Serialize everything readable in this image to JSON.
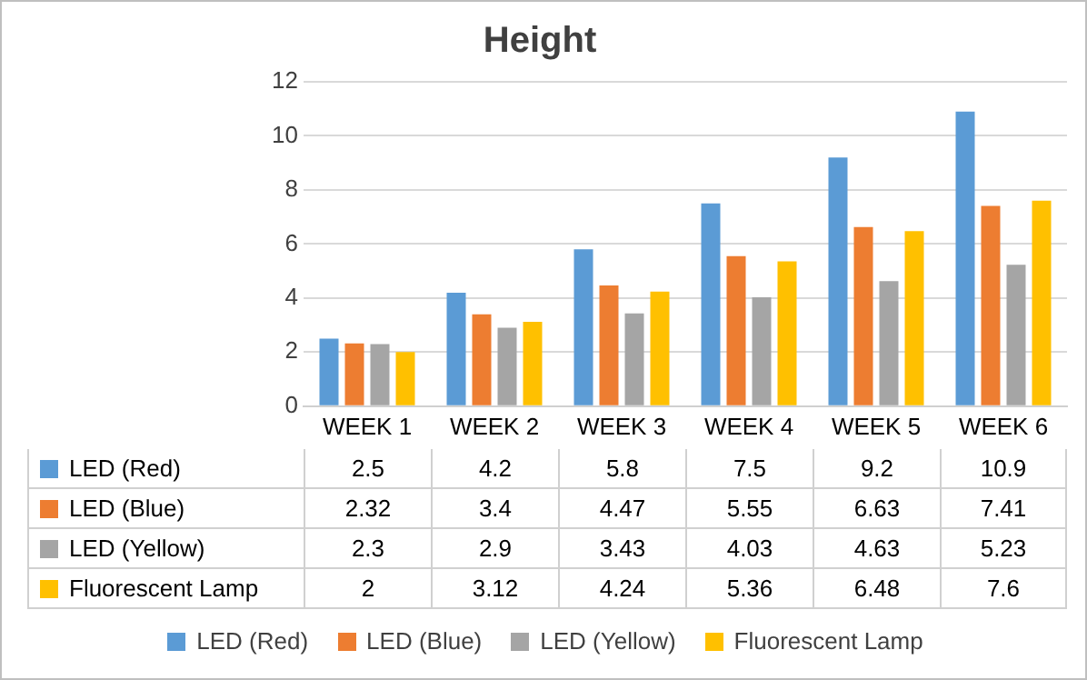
{
  "chart_data": {
    "type": "bar",
    "title": "Height",
    "categories": [
      "WEEK 1",
      "WEEK 2",
      "WEEK 3",
      "WEEK 4",
      "WEEK 5",
      "WEEK 6"
    ],
    "series": [
      {
        "name": "LED (Red)",
        "color": "#5b9bd5",
        "values": [
          2.5,
          4.2,
          5.8,
          7.5,
          9.2,
          10.9
        ]
      },
      {
        "name": "LED (Blue)",
        "color": "#ed7d31",
        "values": [
          2.32,
          3.4,
          4.47,
          5.55,
          6.63,
          7.41
        ]
      },
      {
        "name": "LED (Yellow)",
        "color": "#a5a5a5",
        "values": [
          2.3,
          2.9,
          3.43,
          4.03,
          4.63,
          5.23
        ]
      },
      {
        "name": "Fluorescent Lamp",
        "color": "#ffc000",
        "values": [
          2,
          3.12,
          4.24,
          5.36,
          6.48,
          7.6
        ]
      }
    ],
    "ylim": [
      0,
      12
    ],
    "yticks": [
      0,
      2,
      4,
      6,
      8,
      10,
      12
    ],
    "grid": "y",
    "legend": "bottom",
    "data_labels": true
  }
}
